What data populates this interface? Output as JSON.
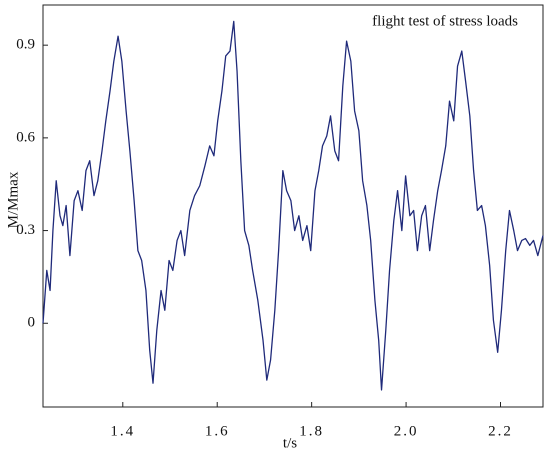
{
  "chart_data": {
    "type": "line",
    "annotation": "flight test of stress loads",
    "xlabel": "t/s",
    "ylabel": "M/Mmax",
    "color": "#1f2a7a",
    "xlim": [
      1.231,
      2.29
    ],
    "ylim": [
      -0.271,
      1.03
    ],
    "xticks": [
      1.4,
      1.6,
      1.8,
      {
        "value": 2,
        "label": "2.0"
      },
      2.2
    ],
    "yticks": [
      0,
      0.3,
      0.6,
      0.9
    ],
    "x": [
      1.231,
      1.239,
      1.246,
      1.252,
      1.259,
      1.267,
      1.273,
      1.28,
      1.288,
      1.297,
      1.305,
      1.314,
      1.322,
      1.33,
      1.339,
      1.347,
      1.356,
      1.364,
      1.373,
      1.381,
      1.39,
      1.398,
      1.407,
      1.415,
      1.424,
      1.432,
      1.44,
      1.449,
      1.457,
      1.464,
      1.472,
      1.481,
      1.489,
      1.498,
      1.506,
      1.515,
      1.523,
      1.531,
      1.542,
      1.552,
      1.563,
      1.574,
      1.584,
      1.593,
      1.601,
      1.61,
      1.618,
      1.627,
      1.635,
      1.642,
      1.65,
      1.658,
      1.667,
      1.675,
      1.686,
      1.697,
      1.705,
      1.713,
      1.722,
      1.73,
      1.739,
      1.747,
      1.756,
      1.764,
      1.773,
      1.781,
      1.79,
      1.798,
      1.807,
      1.815,
      1.823,
      1.832,
      1.84,
      1.849,
      1.857,
      1.866,
      1.874,
      1.883,
      1.891,
      1.9,
      1.908,
      1.917,
      1.925,
      1.934,
      1.942,
      1.948,
      1.957,
      1.965,
      1.974,
      1.982,
      1.991,
      1.999,
      2.008,
      2.016,
      2.024,
      2.033,
      2.041,
      2.05,
      2.058,
      2.067,
      2.075,
      2.084,
      2.092,
      2.101,
      2.109,
      2.118,
      2.126,
      2.135,
      2.143,
      2.151,
      2.16,
      2.168,
      2.177,
      2.185,
      2.194,
      2.202,
      2.211,
      2.219,
      2.228,
      2.236,
      2.245,
      2.253,
      2.262,
      2.27,
      2.279,
      2.29
    ],
    "values": [
      0,
      0.171,
      0.106,
      0.3,
      0.461,
      0.348,
      0.316,
      0.381,
      0.219,
      0.397,
      0.429,
      0.365,
      0.494,
      0.526,
      0.413,
      0.461,
      0.558,
      0.655,
      0.752,
      0.848,
      0.929,
      0.848,
      0.687,
      0.558,
      0.397,
      0.235,
      0.203,
      0.106,
      -0.087,
      -0.194,
      -0.023,
      0.106,
      0.042,
      0.203,
      0.171,
      0.268,
      0.3,
      0.219,
      0.365,
      0.413,
      0.445,
      0.51,
      0.574,
      0.542,
      0.655,
      0.752,
      0.865,
      0.881,
      0.977,
      0.816,
      0.526,
      0.3,
      0.252,
      0.171,
      0.074,
      -0.055,
      -0.184,
      -0.119,
      0.042,
      0.235,
      0.494,
      0.429,
      0.397,
      0.3,
      0.348,
      0.268,
      0.316,
      0.235,
      0.429,
      0.494,
      0.574,
      0.606,
      0.671,
      0.558,
      0.526,
      0.768,
      0.913,
      0.848,
      0.687,
      0.623,
      0.461,
      0.381,
      0.268,
      0.074,
      -0.055,
      -0.216,
      -0.023,
      0.171,
      0.332,
      0.429,
      0.3,
      0.477,
      0.348,
      0.365,
      0.235,
      0.348,
      0.381,
      0.235,
      0.332,
      0.429,
      0.494,
      0.574,
      0.719,
      0.655,
      0.832,
      0.881,
      0.784,
      0.671,
      0.494,
      0.365,
      0.381,
      0.316,
      0.187,
      0.01,
      -0.094,
      0.042,
      0.235,
      0.365,
      0.3,
      0.235,
      0.268,
      0.274,
      0.252,
      0.268,
      0.219,
      0.284
    ]
  }
}
